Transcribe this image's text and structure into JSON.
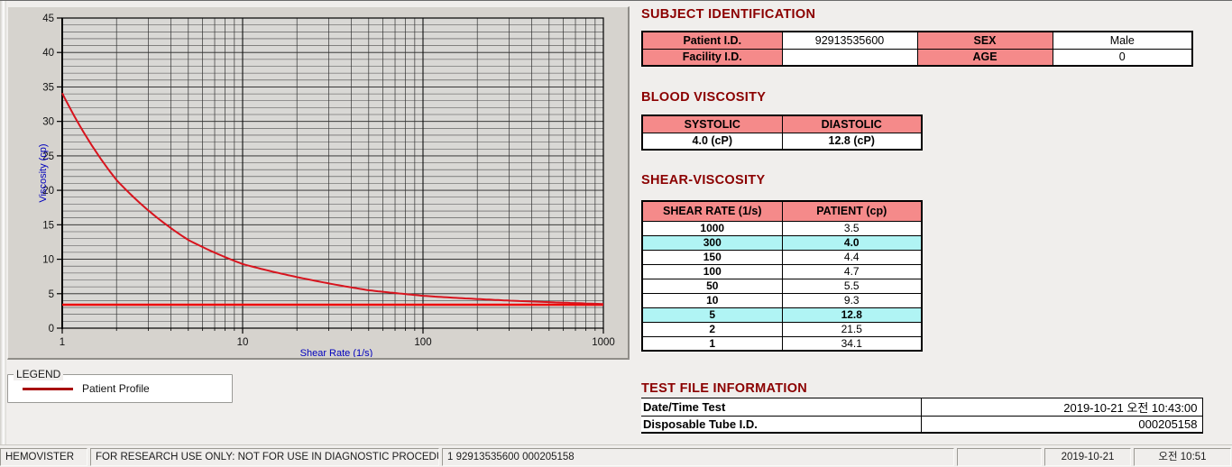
{
  "colors": {
    "window-bg": "#f0eeec",
    "panel-bg": "#d6d3ce",
    "accent-maroon": "#8b0000",
    "header-salmon": "#f58a8a",
    "highlight-cyan": "#b0f4f4",
    "axis-blue": "#0000bd",
    "curve-red": "#d8141e",
    "reference-red": "#ee0a0a",
    "legend-line-red": "#a80a0a"
  },
  "chart_data": {
    "type": "line",
    "xscale": "log",
    "xlabel": "Shear Rate (1/s)",
    "ylabel": "Viscosity (cp)",
    "xlim": [
      1,
      1000
    ],
    "ylim": [
      0,
      45
    ],
    "x_ticks": [
      1,
      10,
      100,
      1000
    ],
    "y_ticks": [
      0,
      5,
      10,
      15,
      20,
      25,
      30,
      35,
      40,
      45
    ],
    "grid": "on",
    "x": [
      1,
      2,
      5,
      10,
      50,
      100,
      150,
      300,
      1000
    ],
    "series": [
      {
        "name": "Patient Profile",
        "values": [
          34.1,
          21.5,
          12.8,
          9.3,
          5.5,
          4.7,
          4.4,
          4.0,
          3.5
        ]
      }
    ],
    "reference_line_y": 3.4,
    "legend_position": "below-left"
  },
  "legend": {
    "box_title": "LEGEND",
    "entries": [
      {
        "label": "Patient Profile",
        "color": "#a80a0a"
      }
    ]
  },
  "subject_identification": {
    "title": "SUBJECT IDENTIFICATION",
    "rows": [
      {
        "label1": "Patient I.D.",
        "value1": "92913535600",
        "label2": "SEX",
        "value2": "Male"
      },
      {
        "label1": "Facility I.D.",
        "value1": "",
        "label2": "AGE",
        "value2": "0"
      }
    ]
  },
  "blood_viscosity": {
    "title": "BLOOD VISCOSITY",
    "headers": [
      "SYSTOLIC",
      "DIASTOLIC"
    ],
    "values": [
      "4.0 (cP)",
      "12.8 (cP)"
    ]
  },
  "shear_viscosity": {
    "title": "SHEAR-VISCOSITY",
    "headers": [
      "SHEAR RATE (1/s)",
      "PATIENT (cp)"
    ],
    "rows": [
      {
        "rate": "1000",
        "value": "3.5",
        "highlight": false
      },
      {
        "rate": "300",
        "value": "4.0",
        "highlight": true
      },
      {
        "rate": "150",
        "value": "4.4",
        "highlight": false
      },
      {
        "rate": "100",
        "value": "4.7",
        "highlight": false
      },
      {
        "rate": "50",
        "value": "5.5",
        "highlight": false
      },
      {
        "rate": "10",
        "value": "9.3",
        "highlight": false
      },
      {
        "rate": "5",
        "value": "12.8",
        "highlight": true
      },
      {
        "rate": "2",
        "value": "21.5",
        "highlight": false
      },
      {
        "rate": "1",
        "value": "34.1",
        "highlight": false
      }
    ]
  },
  "test_file_information": {
    "title": "TEST FILE INFORMATION",
    "rows": [
      {
        "label": "Date/Time Test",
        "value": "2019-10-21   오전 10:43:00"
      },
      {
        "label": "Disposable Tube I.D.",
        "value": "000205158"
      }
    ]
  },
  "status_bar": {
    "app_name": "HEMOVISTER",
    "notice": "FOR RESEARCH USE ONLY: NOT FOR USE IN DIAGNOSTIC PROCEDURES",
    "record_info": "1  92913535600  000205158",
    "blank": "",
    "date": "2019-10-21",
    "time": "오전 10:51"
  }
}
